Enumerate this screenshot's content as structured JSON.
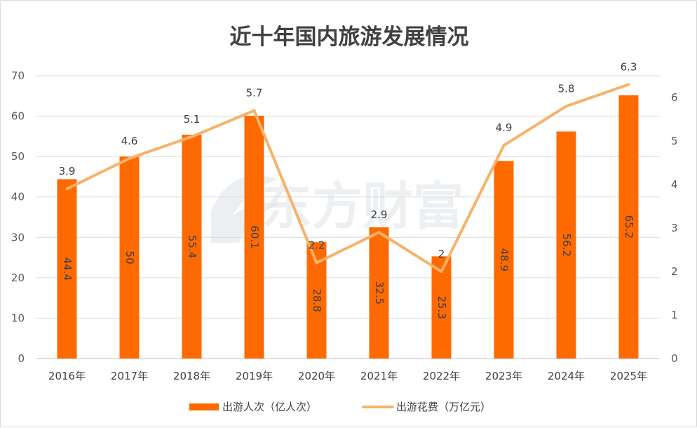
{
  "chart_data": {
    "type": "bar+line",
    "title": "近十年国内旅游发展情况",
    "categories": [
      "2016年",
      "2017年",
      "2018年",
      "2019年",
      "2020年",
      "2021年",
      "2022年",
      "2023年",
      "2024年",
      "2025年"
    ],
    "series": [
      {
        "name": "出游人次（亿人次）",
        "type": "bar",
        "axis": "left",
        "color": "#ff6a00",
        "values": [
          44.4,
          50,
          55.4,
          60.1,
          28.8,
          32.5,
          25.3,
          48.9,
          56.2,
          65.2
        ]
      },
      {
        "name": "出游花费（万亿元）",
        "type": "line",
        "axis": "right",
        "color": "#f7b26a",
        "values": [
          3.9,
          4.6,
          5.1,
          5.7,
          2.2,
          2.9,
          2.0,
          4.9,
          5.8,
          6.3
        ]
      }
    ],
    "y_left": {
      "min": 0,
      "max": 70,
      "step": 10
    },
    "y_right": {
      "min": 0,
      "max": 6.5,
      "ticks": [
        0,
        1,
        2,
        3,
        4,
        5,
        6
      ]
    },
    "legend_position": "bottom",
    "grid": true,
    "watermark": "东方财富"
  }
}
